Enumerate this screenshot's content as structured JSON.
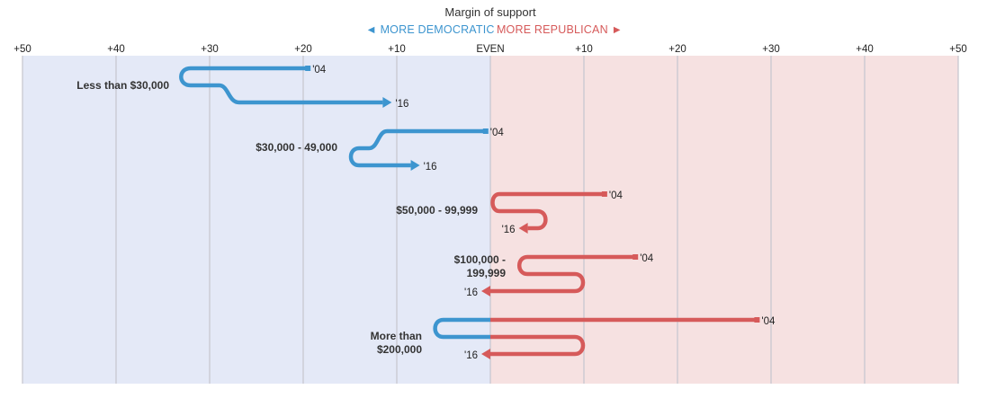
{
  "header": {
    "axis_title": "Margin of support",
    "legend_dem": "◄ MORE DEMOCRATIC",
    "legend_rep": "MORE REPUBLICAN ►"
  },
  "colors": {
    "dem_line": "#3d95cf",
    "rep_line": "#d65a5a",
    "dem_bg": "#e4e9f7",
    "rep_bg": "#f6e1e1",
    "grid": "#c8c8d0",
    "legend_dem": "#3d95cf",
    "legend_rep": "#d65a5a"
  },
  "chart_data": {
    "type": "line",
    "axis": {
      "ticks": [
        -50,
        -40,
        -30,
        -20,
        -10,
        0,
        10,
        20,
        30,
        40,
        50
      ],
      "tick_labels": [
        "+50",
        "+40",
        "+30",
        "+20",
        "+10",
        "EVEN",
        "+10",
        "+20",
        "+30",
        "+40",
        "+50"
      ],
      "range": [
        -50,
        50
      ],
      "grid": true
    },
    "series": [
      {
        "label": [
          "Less than $30,000"
        ],
        "v04": -19.5,
        "v16": -11.5,
        "year04": "'04",
        "year16": "'16"
      },
      {
        "label": [
          "$30,000 - 49,000"
        ],
        "v04": -0.5,
        "v16": -8.5,
        "year04": "'04",
        "year16": "'16"
      },
      {
        "label": [
          "$50,000 - 99,999"
        ],
        "v04": 12.2,
        "v16": 4.0,
        "year04": "'04",
        "year16": "'16"
      },
      {
        "label": [
          "$100,000 -",
          "199,999"
        ],
        "v04": 15.5,
        "v16": 0.0,
        "year04": "'04",
        "year16": "'16"
      },
      {
        "label": [
          "More than",
          "$200,000"
        ],
        "v04": 28.5,
        "v16": 0.0,
        "year04": "'04",
        "year16": "'16"
      }
    ]
  }
}
